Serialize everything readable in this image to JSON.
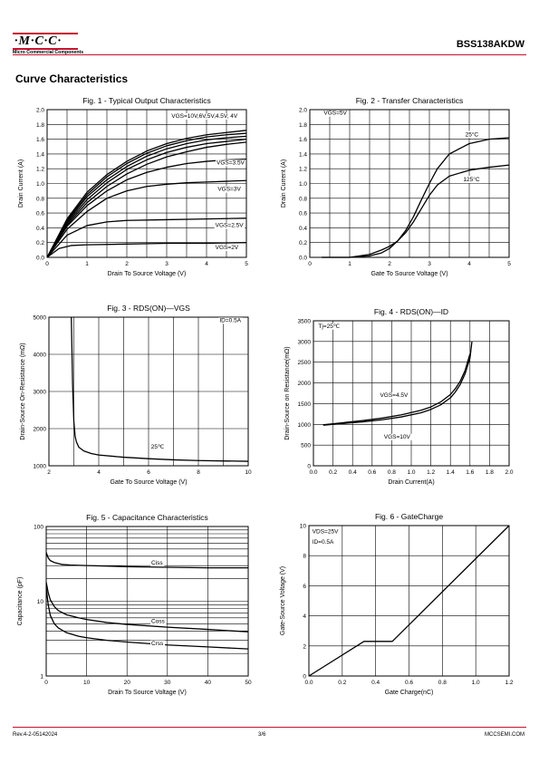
{
  "header": {
    "logo_text": "·M·C·C·",
    "logo_subtitle": "Micro Commercial Components",
    "part_number": "BSS138AKDW"
  },
  "section_title": "Curve Characteristics",
  "footer": {
    "revision": "Rev.4-2-05142024",
    "page": "3/6",
    "website": "MCCSEMI.COM"
  },
  "chart_data": [
    {
      "type": "line",
      "scale": "linear",
      "title": "Fig. 1 - Typical Output Characteristics",
      "xlabel": "Drain To Source Voltage (V)",
      "ylabel": "Drain Current (A)",
      "xlim": [
        0,
        5
      ],
      "ylim": [
        0,
        2.0
      ],
      "xticks": [
        0,
        1,
        2,
        3,
        4,
        5
      ],
      "yticks": [
        0.0,
        0.2,
        0.4,
        0.6,
        0.8,
        1.0,
        1.2,
        1.4,
        1.6,
        1.8,
        2.0
      ],
      "ytick_decimals": 1,
      "grid": true,
      "series": [
        {
          "name": "VGS=10V",
          "x": [
            0,
            0.5,
            1,
            1.5,
            2,
            2.5,
            3,
            3.5,
            4,
            4.5,
            5
          ],
          "y": [
            0,
            0.52,
            0.88,
            1.12,
            1.3,
            1.44,
            1.54,
            1.61,
            1.66,
            1.69,
            1.72
          ]
        },
        {
          "name": "VGS=6V",
          "x": [
            0,
            0.5,
            1,
            1.5,
            2,
            2.5,
            3,
            3.5,
            4,
            4.5,
            5
          ],
          "y": [
            0,
            0.5,
            0.85,
            1.09,
            1.27,
            1.41,
            1.51,
            1.58,
            1.63,
            1.66,
            1.68
          ]
        },
        {
          "name": "VGS=5V",
          "x": [
            0,
            0.5,
            1,
            1.5,
            2,
            2.5,
            3,
            3.5,
            4,
            4.5,
            5
          ],
          "y": [
            0,
            0.48,
            0.82,
            1.05,
            1.23,
            1.37,
            1.47,
            1.54,
            1.59,
            1.62,
            1.64
          ]
        },
        {
          "name": "VGS=4.5V",
          "x": [
            0,
            0.5,
            1,
            1.5,
            2,
            2.5,
            3,
            3.5,
            4,
            4.5,
            5
          ],
          "y": [
            0,
            0.46,
            0.78,
            1.01,
            1.19,
            1.32,
            1.42,
            1.49,
            1.54,
            1.57,
            1.6
          ]
        },
        {
          "name": "VGS=4V",
          "x": [
            0,
            0.5,
            1,
            1.5,
            2,
            2.5,
            3,
            3.5,
            4,
            4.5,
            5
          ],
          "y": [
            0,
            0.44,
            0.74,
            0.96,
            1.13,
            1.26,
            1.36,
            1.43,
            1.49,
            1.53,
            1.56
          ]
        },
        {
          "name": "VGS=3.5V",
          "x": [
            0,
            0.5,
            1,
            1.5,
            2,
            2.5,
            3,
            3.5,
            4,
            4.5,
            5
          ],
          "y": [
            0,
            0.42,
            0.7,
            0.9,
            1.05,
            1.15,
            1.22,
            1.27,
            1.3,
            1.32,
            1.33
          ]
        },
        {
          "name": "VGS=3V",
          "x": [
            0,
            0.5,
            1,
            1.5,
            2,
            2.5,
            3,
            3.5,
            4,
            4.5,
            5
          ],
          "y": [
            0,
            0.38,
            0.62,
            0.8,
            0.9,
            0.96,
            0.99,
            1.01,
            1.02,
            1.03,
            1.04
          ]
        },
        {
          "name": "VGS=2.5V",
          "x": [
            0,
            0.5,
            1,
            1.5,
            2,
            3,
            4,
            5
          ],
          "y": [
            0,
            0.3,
            0.43,
            0.48,
            0.5,
            0.51,
            0.52,
            0.53
          ]
        },
        {
          "name": "VGS=2V",
          "x": [
            0,
            0.3,
            0.6,
            1,
            2,
            3,
            4,
            5
          ],
          "y": [
            0,
            0.12,
            0.16,
            0.17,
            0.18,
            0.19,
            0.19,
            0.2
          ]
        }
      ],
      "labels": [
        {
          "text": "VGS=10V,6V,5V,4.5V, 4V",
          "x": 3.12,
          "y": 1.89
        },
        {
          "text": "VGS=3.5V",
          "x": 4.25,
          "y": 1.26
        },
        {
          "text": "VGS=3V",
          "x": 4.28,
          "y": 0.9
        },
        {
          "text": "VGS=2.5V",
          "x": 4.22,
          "y": 0.41
        },
        {
          "text": "VGS=2V",
          "x": 4.22,
          "y": 0.11
        }
      ]
    },
    {
      "type": "line",
      "scale": "linear",
      "title": "Fig. 2 - Transfer Characteristics",
      "xlabel": "Gate To Source Voltage (V)",
      "ylabel": "Drain Current (A)",
      "xlim": [
        0,
        5
      ],
      "ylim": [
        0,
        2.0
      ],
      "xticks": [
        0,
        1,
        2,
        3,
        4,
        5
      ],
      "yticks": [
        0.0,
        0.2,
        0.4,
        0.6,
        0.8,
        1.0,
        1.2,
        1.4,
        1.6,
        1.8,
        2.0
      ],
      "ytick_decimals": 1,
      "grid": true,
      "series": [
        {
          "name": "25°C",
          "x": [
            0.3,
            1,
            1.5,
            1.8,
            2,
            2.2,
            2.4,
            2.6,
            2.8,
            3,
            3.2,
            3.5,
            4,
            4.5,
            5
          ],
          "y": [
            0,
            0,
            0.02,
            0.06,
            0.12,
            0.22,
            0.36,
            0.55,
            0.78,
            1.0,
            1.2,
            1.4,
            1.54,
            1.6,
            1.62
          ]
        },
        {
          "name": "125°C",
          "x": [
            0.3,
            1,
            1.5,
            1.8,
            2,
            2.2,
            2.4,
            2.6,
            2.8,
            3,
            3.2,
            3.5,
            4,
            4.5,
            5
          ],
          "y": [
            0,
            0,
            0.04,
            0.1,
            0.15,
            0.22,
            0.33,
            0.48,
            0.66,
            0.84,
            0.98,
            1.1,
            1.18,
            1.22,
            1.25
          ]
        }
      ],
      "labels": [
        {
          "text": "VGS=5V",
          "x": 0.35,
          "y": 1.93
        },
        {
          "text": "25°C",
          "x": 3.9,
          "y": 1.64
        },
        {
          "text": "125°C",
          "x": 3.85,
          "y": 1.03
        }
      ]
    },
    {
      "type": "line",
      "scale": "linear",
      "title": "Fig. 3 - RDS(ON)—VGS",
      "xlabel": "Gate To Source Voltage (V)",
      "ylabel": "Drain-Source On-Resistance (mΩ)",
      "xlim": [
        2,
        10
      ],
      "ylim": [
        1000,
        5000
      ],
      "xticks": [
        2,
        4,
        6,
        8,
        10
      ],
      "yticks": [
        1000,
        2000,
        3000,
        4000,
        5000
      ],
      "ytick_decimals": 0,
      "grid": true,
      "series": [
        {
          "name": "25℃",
          "x": [
            2.9,
            2.95,
            3.0,
            3.05,
            3.1,
            3.2,
            3.4,
            3.7,
            4,
            5,
            6,
            7,
            8,
            9,
            10
          ],
          "y": [
            5000,
            3200,
            2200,
            1800,
            1650,
            1500,
            1400,
            1330,
            1290,
            1230,
            1190,
            1160,
            1140,
            1130,
            1120
          ]
        }
      ],
      "labels": [
        {
          "text": "ID=0.5A",
          "x": 8.85,
          "y": 4870
        },
        {
          "text": "25℃",
          "x": 6.1,
          "y": 1460
        }
      ]
    },
    {
      "type": "line",
      "scale": "linear",
      "title": "Fig. 4 - RDS(ON)—ID",
      "xlabel": "Drain Current(A)",
      "ylabel": "Drain-Source on Resistance(mΩ)",
      "xlim": [
        0,
        2.0
      ],
      "ylim": [
        0,
        3500
      ],
      "xticks": [
        0.0,
        0.2,
        0.4,
        0.6,
        0.8,
        1.0,
        1.2,
        1.4,
        1.6,
        1.8,
        2.0
      ],
      "yticks": [
        0,
        500,
        1000,
        1500,
        2000,
        2500,
        3000,
        3500
      ],
      "ytick_decimals": 1,
      "ytick_decimals_y": 0,
      "grid": true,
      "series": [
        {
          "name": "VGS=4.5V",
          "x": [
            0.1,
            0.3,
            0.5,
            0.7,
            0.9,
            1.1,
            1.2,
            1.3,
            1.4,
            1.45,
            1.5,
            1.55,
            1.6
          ],
          "y": [
            990,
            1040,
            1090,
            1150,
            1230,
            1340,
            1420,
            1540,
            1720,
            1860,
            2040,
            2300,
            2700
          ]
        },
        {
          "name": "VGS=10V",
          "x": [
            0.1,
            0.3,
            0.5,
            0.7,
            0.9,
            1.1,
            1.2,
            1.3,
            1.4,
            1.45,
            1.5,
            1.55,
            1.6,
            1.62
          ],
          "y": [
            980,
            1020,
            1060,
            1110,
            1180,
            1280,
            1360,
            1470,
            1640,
            1780,
            1960,
            2220,
            2600,
            3000
          ]
        }
      ],
      "labels": [
        {
          "text": "Tj=25℃",
          "x": 0.05,
          "y": 3330
        },
        {
          "text": "VGS=4.5V",
          "x": 0.68,
          "y": 1660
        },
        {
          "text": "VGS=10V",
          "x": 0.72,
          "y": 660
        }
      ]
    },
    {
      "type": "line",
      "scale": "log-y",
      "title": "Fig. 5 - Capacitance Characteristics",
      "xlabel": "Drain To Source Voltage (V)",
      "ylabel": "Capacitance (pF)",
      "xlim": [
        0,
        50
      ],
      "ylim": [
        1,
        100
      ],
      "xticks": [
        0,
        10,
        20,
        30,
        40,
        50
      ],
      "yticks": [
        1,
        10,
        100
      ],
      "ytick_decimals": 0,
      "grid": true,
      "series": [
        {
          "name": "Ciss",
          "x": [
            0,
            0.5,
            1,
            2,
            4,
            6,
            10,
            20,
            30,
            40,
            50
          ],
          "y": [
            45,
            38,
            35,
            33,
            31,
            30.5,
            30,
            29,
            28.5,
            28,
            28
          ]
        },
        {
          "name": "Coss",
          "x": [
            0,
            0.5,
            1,
            2,
            3,
            5,
            8,
            10,
            15,
            20,
            30,
            40,
            50
          ],
          "y": [
            18,
            13,
            10.5,
            8.5,
            7.5,
            6.6,
            6.0,
            5.7,
            5.2,
            4.9,
            4.5,
            4.2,
            3.9
          ]
        },
        {
          "name": "Crss",
          "x": [
            0,
            0.5,
            1,
            2,
            3,
            5,
            8,
            10,
            15,
            20,
            30,
            40,
            50
          ],
          "y": [
            15,
            9,
            6.5,
            5.0,
            4.4,
            3.8,
            3.4,
            3.25,
            3.0,
            2.85,
            2.6,
            2.45,
            2.3
          ]
        }
      ],
      "labels": [
        {
          "text": "Ciss",
          "x": 26,
          "y": 31
        },
        {
          "text": "Coss",
          "x": 26,
          "y": 5.1
        },
        {
          "text": "Crss",
          "x": 26,
          "y": 2.6
        }
      ]
    },
    {
      "type": "line",
      "scale": "linear",
      "title": "Fig. 6 - GateCharge",
      "xlabel": "Gate Charge(nC)",
      "ylabel": "Gate-Source Voltage  (V)",
      "xlim": [
        0,
        1.2
      ],
      "ylim": [
        0,
        10
      ],
      "xticks": [
        0.0,
        0.2,
        0.4,
        0.6,
        0.8,
        1.0,
        1.2
      ],
      "yticks": [
        0,
        2,
        4,
        6,
        8,
        10
      ],
      "ytick_decimals": 1,
      "ytick_decimals_y": 0,
      "grid": true,
      "series": [
        {
          "name": "VGS",
          "x": [
            0,
            0.33,
            0.5,
            1.2
          ],
          "y": [
            0,
            2.3,
            2.3,
            10
          ]
        }
      ],
      "labels": [
        {
          "text": "VDS=25V",
          "x": 0.02,
          "y": 9.5
        },
        {
          "text": "ID=0.5A",
          "x": 0.02,
          "y": 8.8
        }
      ]
    }
  ]
}
